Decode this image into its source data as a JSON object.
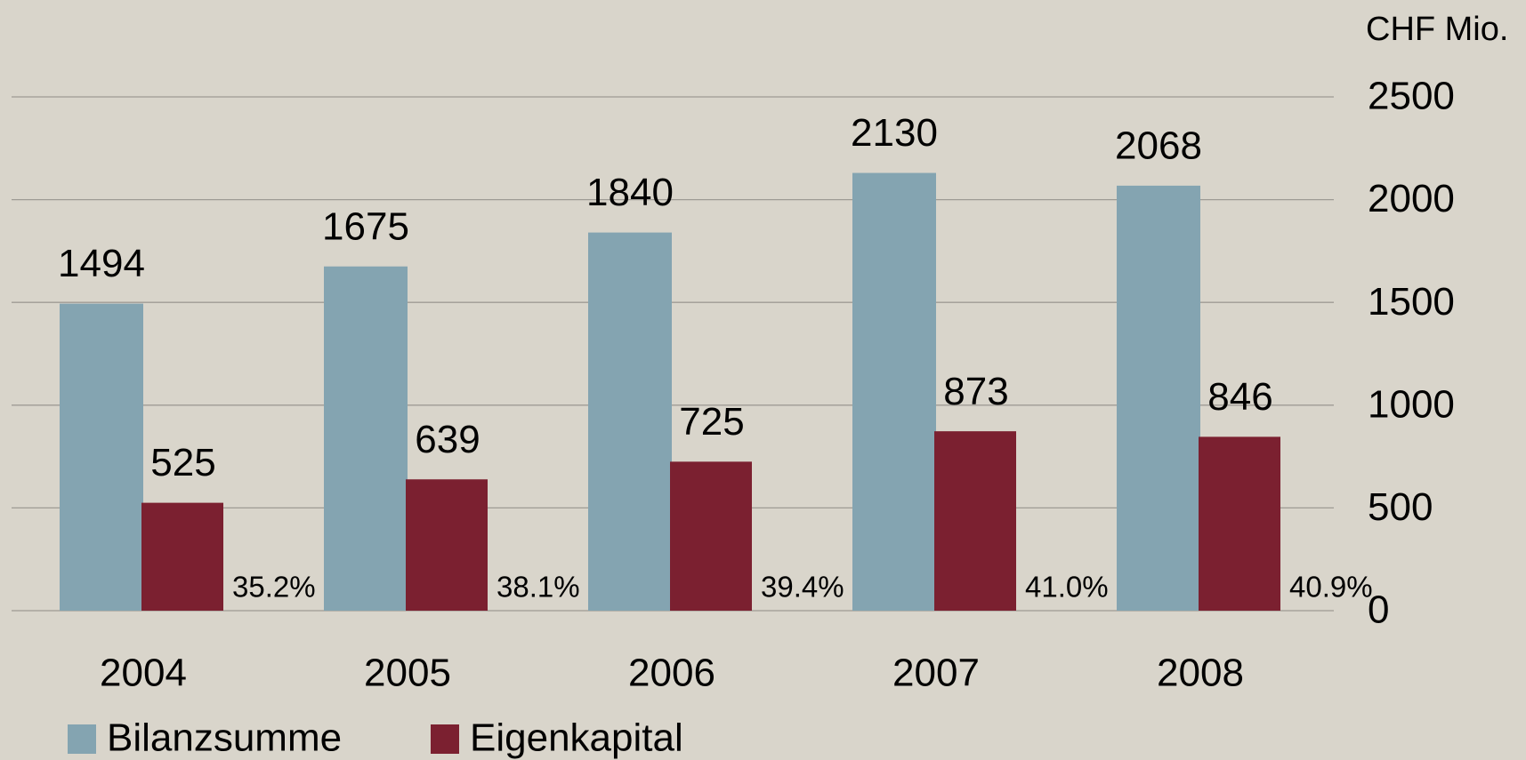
{
  "chart_data": {
    "type": "bar",
    "y_axis_label": "CHF Mio.",
    "categories": [
      "2004",
      "2005",
      "2006",
      "2007",
      "2008"
    ],
    "series": [
      {
        "name": "Bilanzsumme",
        "color": "#84a4b1",
        "values": [
          1494,
          1675,
          1840,
          2130,
          2068
        ]
      },
      {
        "name": "Eigenkapital",
        "color": "#7b2030",
        "values": [
          525,
          639,
          725,
          873,
          846
        ]
      }
    ],
    "annotations": [
      "35.2%",
      "38.1%",
      "39.4%",
      "41.0%",
      "40.9%"
    ],
    "ylim": [
      0,
      2500
    ],
    "yticks": [
      0,
      500,
      1000,
      1500,
      2000,
      2500
    ],
    "grid": true,
    "y_axis_side": "right",
    "legend": "bottom-left"
  }
}
